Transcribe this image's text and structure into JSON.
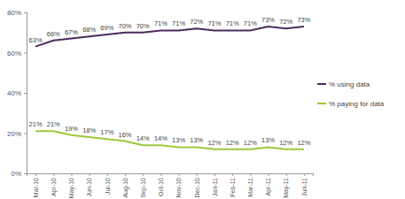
{
  "chart_data": {
    "type": "line",
    "categories": [
      "Mar-10",
      "Apr-10",
      "May-10",
      "Jun-10",
      "Jul-10",
      "Aug-10",
      "Sep-10",
      "Oct-10",
      "Nov-10",
      "Dec-10",
      "Jan-11",
      "Feb-11",
      "Mar-11",
      "Apr-11",
      "May-11",
      "Jun-11"
    ],
    "series": [
      {
        "name": "% using data",
        "color": "#4d2a5b",
        "values": [
          63,
          66,
          67,
          68,
          69,
          70,
          70,
          71,
          71,
          72,
          71,
          71,
          71,
          73,
          72,
          73
        ],
        "value_labels": [
          "63%",
          "66%",
          "67%",
          "68%",
          "69%",
          "70%",
          "70%",
          "71%",
          "71%",
          "72%",
          "71%",
          "71%",
          "71%",
          "73%",
          "72%",
          "73%"
        ]
      },
      {
        "name": "% paying for data",
        "color": "#99c93a",
        "values": [
          21,
          21,
          19,
          18,
          17,
          16,
          14,
          14,
          13,
          13,
          12,
          12,
          12,
          13,
          12,
          12
        ],
        "value_labels": [
          "21%",
          "21%",
          "19%",
          "18%",
          "17%",
          "16%",
          "14%",
          "14%",
          "13%",
          "13%",
          "12%",
          "12%",
          "12%",
          "13%",
          "12%",
          "12%"
        ]
      }
    ],
    "ylim": [
      0,
      80
    ],
    "yticks": [
      {
        "value": 0,
        "label": "0%"
      },
      {
        "value": 20,
        "label": "20%"
      },
      {
        "value": 40,
        "label": "40%"
      },
      {
        "value": 60,
        "label": "60%"
      },
      {
        "value": 80,
        "label": "80%"
      }
    ],
    "grid": false,
    "legend": "right",
    "data_labels": true
  }
}
